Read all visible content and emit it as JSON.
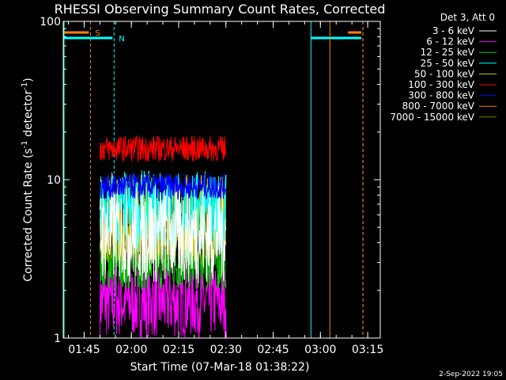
{
  "chart_data": {
    "type": "line",
    "title": "RHESSI Observing Summary Count Rates, Corrected",
    "xlabel": "Start Time (07-Mar-18 01:38:22)",
    "ylabel": "Corrected Count Rate (s⁻¹ detector⁻¹)",
    "ylabel_main": "Corrected Count Rate (s",
    "ylabel_sup1": "-1",
    "ylabel_mid": " detector",
    "ylabel_sup2": "-1",
    "ylabel_end": ")",
    "yscale": "log",
    "ylim": [
      1,
      100
    ],
    "xlim": [
      "01:38:22",
      "03:19:00"
    ],
    "x_ticks": [
      "01:45",
      "02:00",
      "02:15",
      "02:30",
      "02:45",
      "03:00",
      "03:15"
    ],
    "y_ticks": [
      "1",
      "10",
      "100"
    ],
    "legend_header": "Det 3, Att 0",
    "legend_position": "top-right",
    "data_interval": [
      "01:50:00",
      "02:30:00"
    ],
    "series": [
      {
        "name": "3 - 6 keV",
        "color": "#ffffff",
        "level": [
          2.2,
          9.5
        ]
      },
      {
        "name": "6 - 12 keV",
        "color": "#ff00ff",
        "level": [
          1.0,
          2.9
        ]
      },
      {
        "name": "12 - 25 keV",
        "color": "#00cc00",
        "level": [
          2.0,
          4.5
        ]
      },
      {
        "name": "25 - 50 keV",
        "color": "#00ffff",
        "level": [
          3.5,
          11.5
        ]
      },
      {
        "name": "50 - 100 keV",
        "color": "#cccc00",
        "level": [
          3.0,
          11.0
        ]
      },
      {
        "name": "100 - 300 keV",
        "color": "#ff0000",
        "level": [
          13.0,
          19.0
        ]
      },
      {
        "name": "300 - 800 keV",
        "color": "#0000ff",
        "level": [
          7.5,
          11.0
        ]
      },
      {
        "name": "800 - 7000 keV",
        "color": "#ff8000",
        "level": [
          3.8,
          5.4
        ]
      },
      {
        "name": "7000 - 15000 keV",
        "color": "#808000",
        "level": [
          3.0,
          6.0
        ]
      }
    ],
    "flags": [
      {
        "label": "S",
        "color": "#ff8000",
        "start": "01:38:22",
        "end": "01:47:00",
        "end_style": "dashed"
      },
      {
        "label": "N",
        "color": "#00ffff",
        "start": "01:38:22",
        "end": "01:54:30",
        "end_style": "dashed"
      },
      {
        "label": "",
        "color": "#00ffff",
        "start": "02:57:00",
        "end": "03:13:30",
        "end_style": "dashed"
      },
      {
        "label": "",
        "color": "#ff8000",
        "start": "03:03:00",
        "end": "03:13:30",
        "end_style": "dashed"
      }
    ]
  },
  "footer": {
    "date_stamp": "2-Sep-2022 19:05"
  }
}
